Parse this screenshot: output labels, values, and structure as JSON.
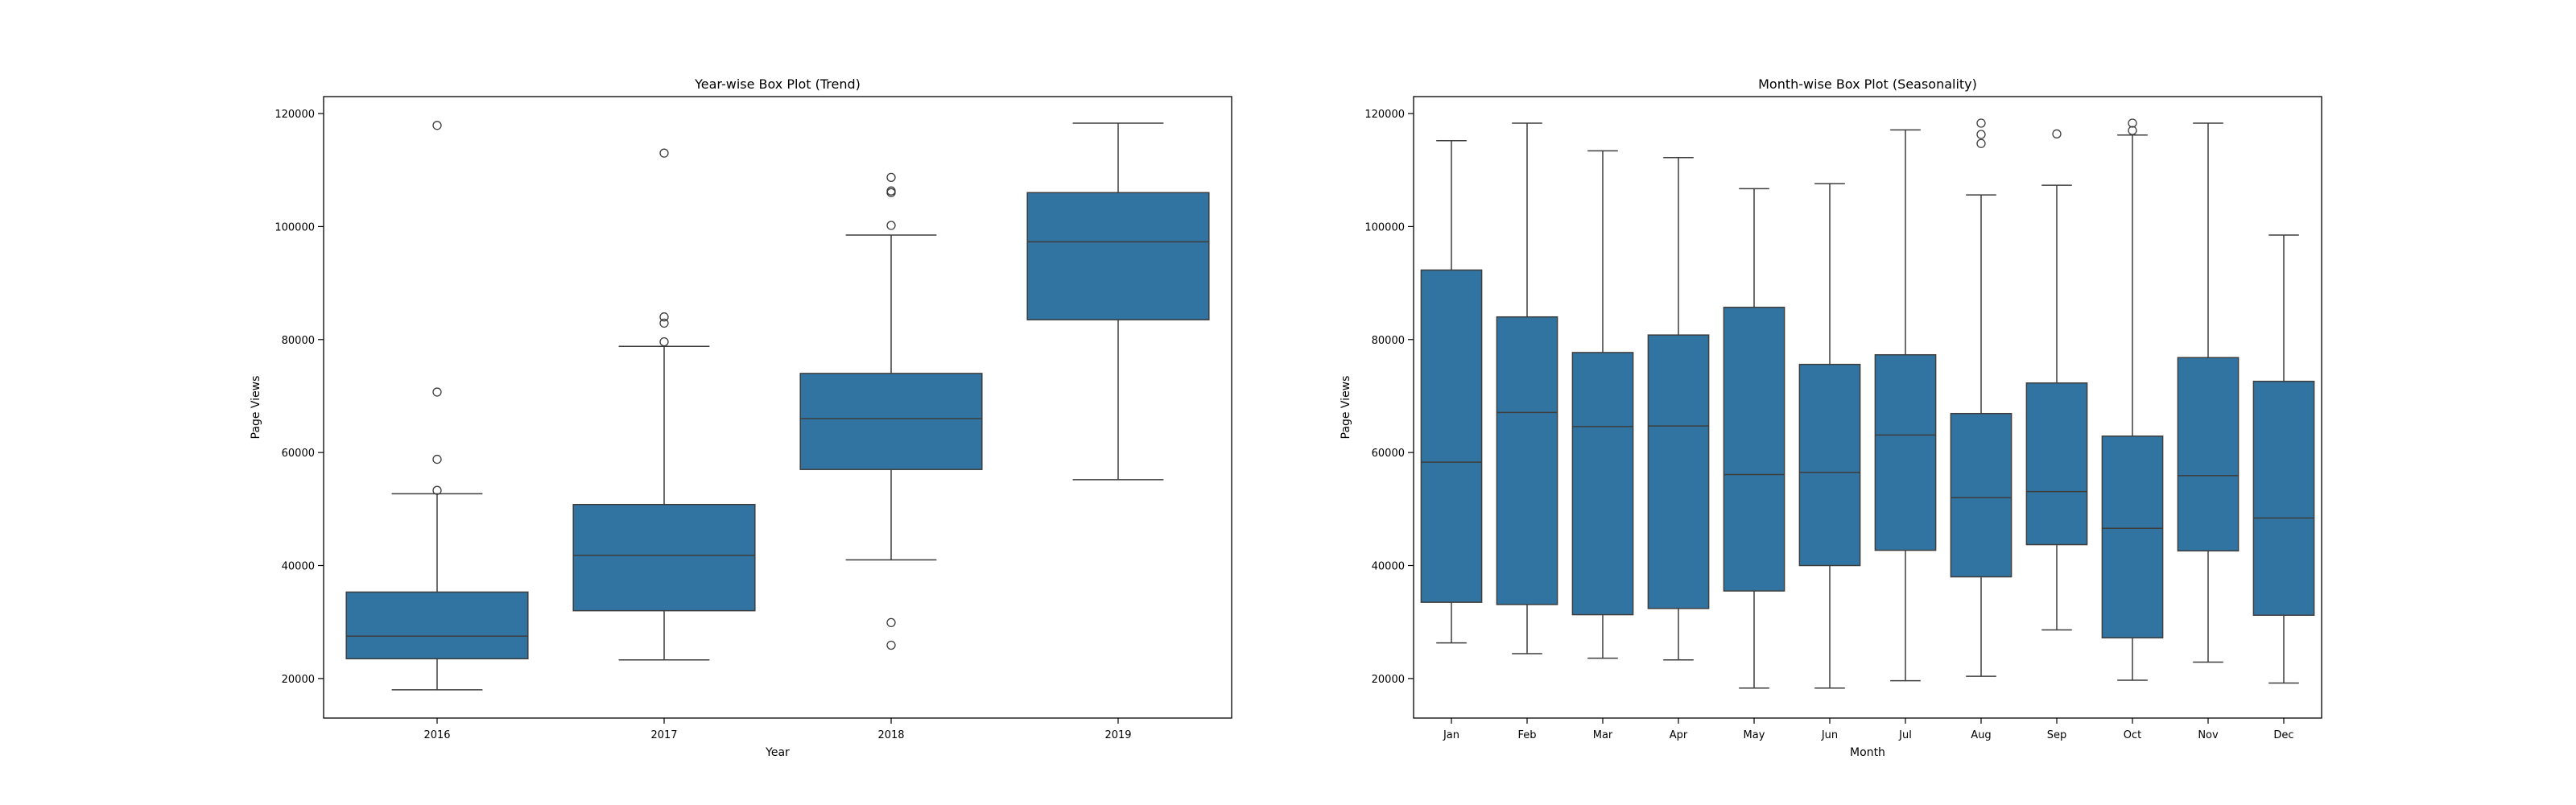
{
  "chart_data": [
    {
      "type": "box",
      "title": "Year-wise Box Plot (Trend)",
      "xlabel": "Year",
      "ylabel": "Page Views",
      "ylim": [
        13000,
        123000
      ],
      "yticks": [
        20000,
        40000,
        60000,
        80000,
        100000,
        120000
      ],
      "color": "#3274a1",
      "categories": [
        "2016",
        "2017",
        "2018",
        "2019"
      ],
      "boxes": [
        {
          "whisker_low": 18000,
          "q1": 23500,
          "median": 27500,
          "q3": 35300,
          "whisker_high": 52700,
          "outliers": [
            53300,
            58800,
            70700,
            117900
          ]
        },
        {
          "whisker_low": 23300,
          "q1": 32000,
          "median": 41800,
          "q3": 50800,
          "whisker_high": 78800,
          "outliers": [
            79600,
            82900,
            84000,
            113000
          ]
        },
        {
          "whisker_low": 41000,
          "q1": 57000,
          "median": 66000,
          "q3": 74000,
          "whisker_high": 98500,
          "outliers": [
            25900,
            29900,
            100200,
            106000,
            106300,
            108700
          ]
        },
        {
          "whisker_low": 55200,
          "q1": 83500,
          "median": 97300,
          "q3": 106000,
          "whisker_high": 118300,
          "outliers": []
        }
      ]
    },
    {
      "type": "box",
      "title": "Month-wise Box Plot (Seasonality)",
      "xlabel": "Month",
      "ylabel": "Page Views",
      "ylim": [
        13000,
        123000
      ],
      "yticks": [
        20000,
        40000,
        60000,
        80000,
        100000,
        120000
      ],
      "color": "#3274a1",
      "categories": [
        "Jan",
        "Feb",
        "Mar",
        "Apr",
        "May",
        "Jun",
        "Jul",
        "Aug",
        "Sep",
        "Oct",
        "Nov",
        "Dec"
      ],
      "boxes": [
        {
          "whisker_low": 26300,
          "q1": 33500,
          "median": 58300,
          "q3": 92300,
          "whisker_high": 115200,
          "outliers": []
        },
        {
          "whisker_low": 24400,
          "q1": 33100,
          "median": 67100,
          "q3": 84000,
          "whisker_high": 118300,
          "outliers": []
        },
        {
          "whisker_low": 23600,
          "q1": 31300,
          "median": 64600,
          "q3": 77700,
          "whisker_high": 113400,
          "outliers": []
        },
        {
          "whisker_low": 23300,
          "q1": 32400,
          "median": 64700,
          "q3": 80800,
          "whisker_high": 112200,
          "outliers": []
        },
        {
          "whisker_low": 18300,
          "q1": 35500,
          "median": 56100,
          "q3": 85700,
          "whisker_high": 106700,
          "outliers": []
        },
        {
          "whisker_low": 18300,
          "q1": 40000,
          "median": 56500,
          "q3": 75600,
          "whisker_high": 107600,
          "outliers": []
        },
        {
          "whisker_low": 19600,
          "q1": 42700,
          "median": 63100,
          "q3": 77300,
          "whisker_high": 117100,
          "outliers": []
        },
        {
          "whisker_low": 20400,
          "q1": 38000,
          "median": 52000,
          "q3": 66900,
          "whisker_high": 105600,
          "outliers": [
            114700,
            116300,
            118300
          ]
        },
        {
          "whisker_low": 28600,
          "q1": 43700,
          "median": 53100,
          "q3": 72300,
          "whisker_high": 107300,
          "outliers": [
            116400
          ]
        },
        {
          "whisker_low": 19700,
          "q1": 27200,
          "median": 46600,
          "q3": 62900,
          "whisker_high": 116200,
          "outliers": [
            117000,
            118300
          ]
        },
        {
          "whisker_low": 22900,
          "q1": 42600,
          "median": 55900,
          "q3": 76800,
          "whisker_high": 118300,
          "outliers": []
        },
        {
          "whisker_low": 19200,
          "q1": 31200,
          "median": 48400,
          "q3": 72600,
          "whisker_high": 98500,
          "outliers": []
        }
      ]
    }
  ]
}
